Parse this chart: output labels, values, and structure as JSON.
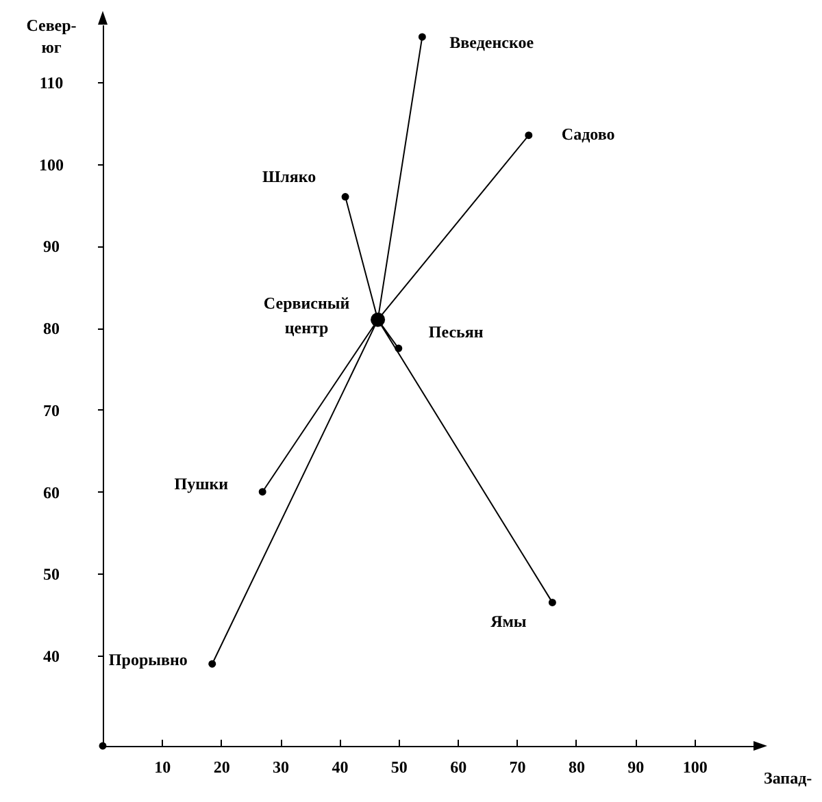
{
  "chart_data": {
    "type": "scatter",
    "xlabel": "Запад-",
    "ylabel": "Север-юг",
    "xlim": [
      0,
      110
    ],
    "ylim": [
      29,
      117
    ],
    "xticks": [
      10,
      20,
      30,
      40,
      50,
      60,
      70,
      80,
      90,
      100
    ],
    "yticks": [
      40,
      50,
      60,
      70,
      80,
      90,
      100,
      110
    ],
    "line_style": "solid",
    "series": [
      {
        "type": "line",
        "color": "#000000",
        "x": [
          46.5,
          54,
          46.5,
          72,
          46.5,
          41,
          46.5,
          50,
          46.5,
          27,
          46.5,
          18.5,
          46.5,
          76
        ],
        "values": [
          81,
          115.5,
          81,
          103.5,
          81,
          96,
          81,
          77.5,
          81,
          60,
          81,
          39,
          81,
          46.5
        ]
      },
      {
        "color": "#000000",
        "marker": "circle",
        "x": [
          54,
          72,
          41,
          50,
          27,
          18.5,
          76,
          0
        ],
        "values": [
          115.5,
          103.5,
          96,
          77.5,
          60,
          39,
          46.5,
          29
        ]
      },
      {
        "type": "bubble",
        "color": "#000000",
        "marker": "circle",
        "x": [
          46.5
        ],
        "values": [
          81
        ],
        "sizes": [
          1
        ]
      }
    ],
    "annotations": [
      {
        "text": "Введенское",
        "x": 54,
        "y": 115.5
      },
      {
        "text": "Садово",
        "x": 72,
        "y": 103.5
      },
      {
        "text": "Шляко",
        "x": 41,
        "y": 96
      },
      {
        "text": "Песьян",
        "x": 50,
        "y": 77.5
      },
      {
        "text": "Пушки",
        "x": 27,
        "y": 60
      },
      {
        "text": "Прорывно",
        "x": 18.5,
        "y": 39
      },
      {
        "text": "Ямы",
        "x": 76,
        "y": 46.5
      },
      {
        "text": "Сервисный центр",
        "x": 46.5,
        "y": 81
      }
    ]
  }
}
